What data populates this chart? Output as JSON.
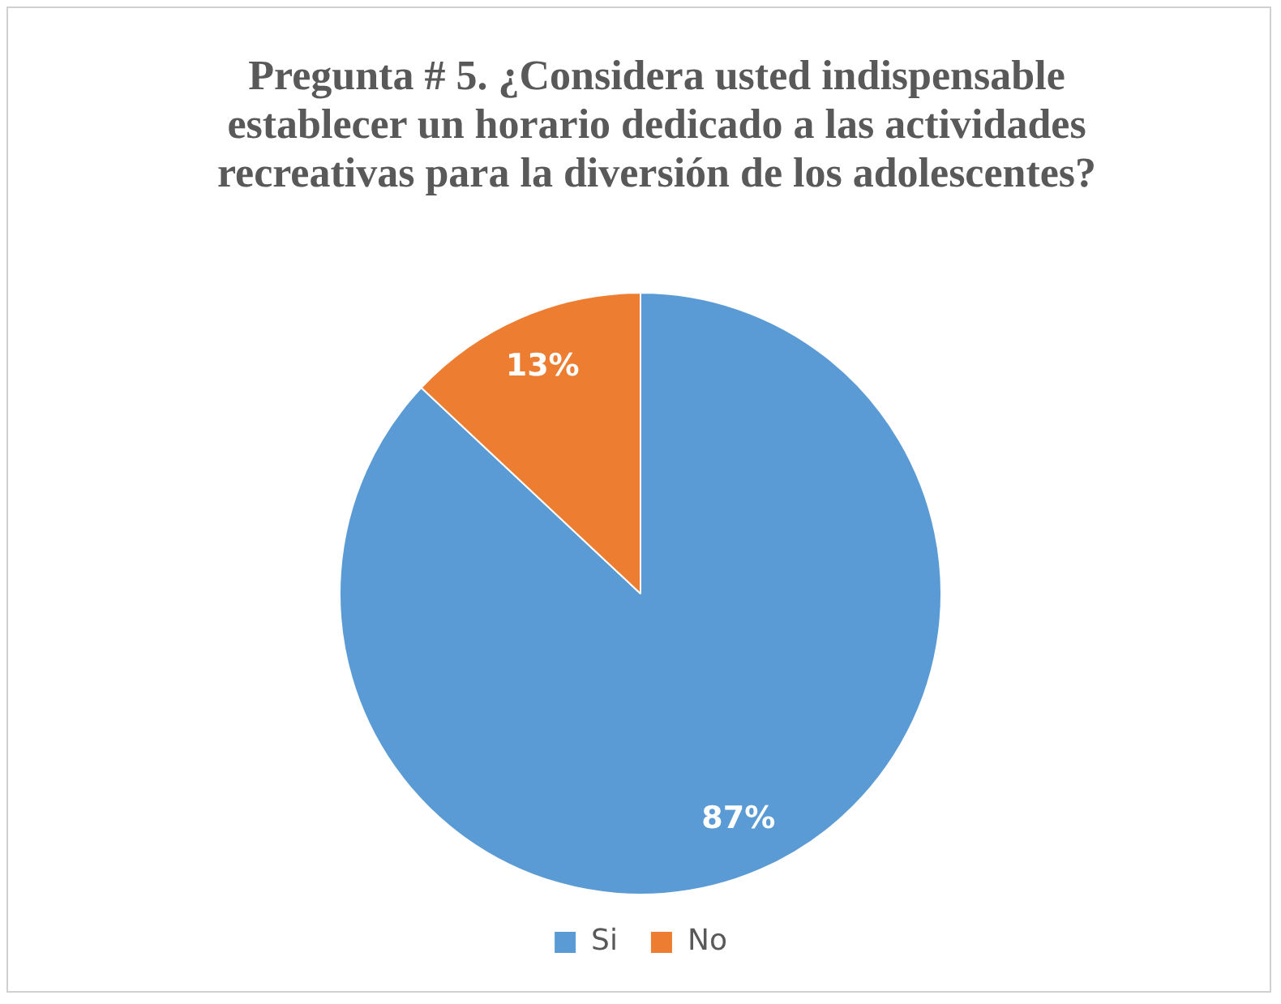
{
  "chart_data": {
    "type": "pie",
    "title": "Pregunta # 5. ¿Considera usted indispensable establecer un horario dedicado a las actividades recreativas para la diversión de los adolescentes?",
    "categories": [
      "Si",
      "No"
    ],
    "values": [
      87,
      13
    ],
    "colors": [
      "#5b9bd5",
      "#ed7d31"
    ],
    "value_labels": [
      "87%",
      "13%"
    ],
    "legend": "bottom"
  }
}
